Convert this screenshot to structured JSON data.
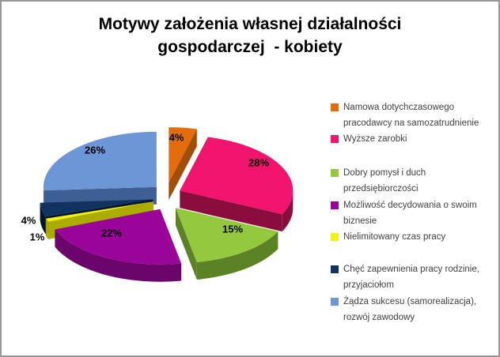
{
  "title": {
    "line1": "Motywy założenia własnej działalności",
    "line2": "gospodarczej  - kobiety"
  },
  "chart_data": {
    "type": "pie",
    "style": "3d-exploded",
    "title": "Motywy założenia własnej działalności gospodarczej - kobiety",
    "unit": "%",
    "legend_position": "right",
    "total": 100,
    "slices": [
      {
        "label": "Namowa dotychczasowego pracodawcy na samozatrudnienie",
        "legend_lines": [
          "Namowa dotychczasowego",
          "pracodawcy na samozatrudnienie"
        ],
        "value": 4,
        "pct_label": "4%",
        "color": "#E36D0C",
        "side_color": "#A04E0A"
      },
      {
        "label": "Wyższe zarobki",
        "legend_lines": [
          "Wyższe zarobki"
        ],
        "value": 28,
        "pct_label": "28%",
        "color": "#F0146C",
        "side_color": "#8A0D3E"
      },
      {
        "label": "Dobry pomysł i duch przedsiębiorczości",
        "legend_lines": [
          "Dobry pomysł i duch",
          "przedsiębiorczości"
        ],
        "value": 15,
        "pct_label": "15%",
        "color": "#94C83F",
        "side_color": "#5C8226"
      },
      {
        "label": "Możliwość decydowania o swoim biznesie",
        "legend_lines": [
          "Możliwość decydowania o swoim",
          "biznesie"
        ],
        "value": 22,
        "pct_label": "22%",
        "color": "#990599",
        "side_color": "#6B056B"
      },
      {
        "label": "Nielimitowany czas pracy",
        "legend_lines": [
          "Nielimitowany czas pracy"
        ],
        "value": 1,
        "pct_label": "1%",
        "color": "#F2F20A",
        "side_color": "#ABAB00"
      },
      {
        "label": "Chęć zapewnienia pracy rodzinie, przyjaciołom",
        "legend_lines": [
          "Chęć zapewnienia pracy rodzinie,",
          "przyjaciołom"
        ],
        "value": 4,
        "pct_label": "4%",
        "color": "#123360",
        "side_color": "#05152E"
      },
      {
        "label": "Żądza sukcesu (samorealizacja), rozwój zawodowy",
        "legend_lines": [
          "Żądza sukcesu (samorealizacja),",
          "rozwój zawodowy"
        ],
        "value": 26,
        "pct_label": "26%",
        "color": "#6C96D6",
        "side_color": "#3D5F94"
      }
    ]
  }
}
